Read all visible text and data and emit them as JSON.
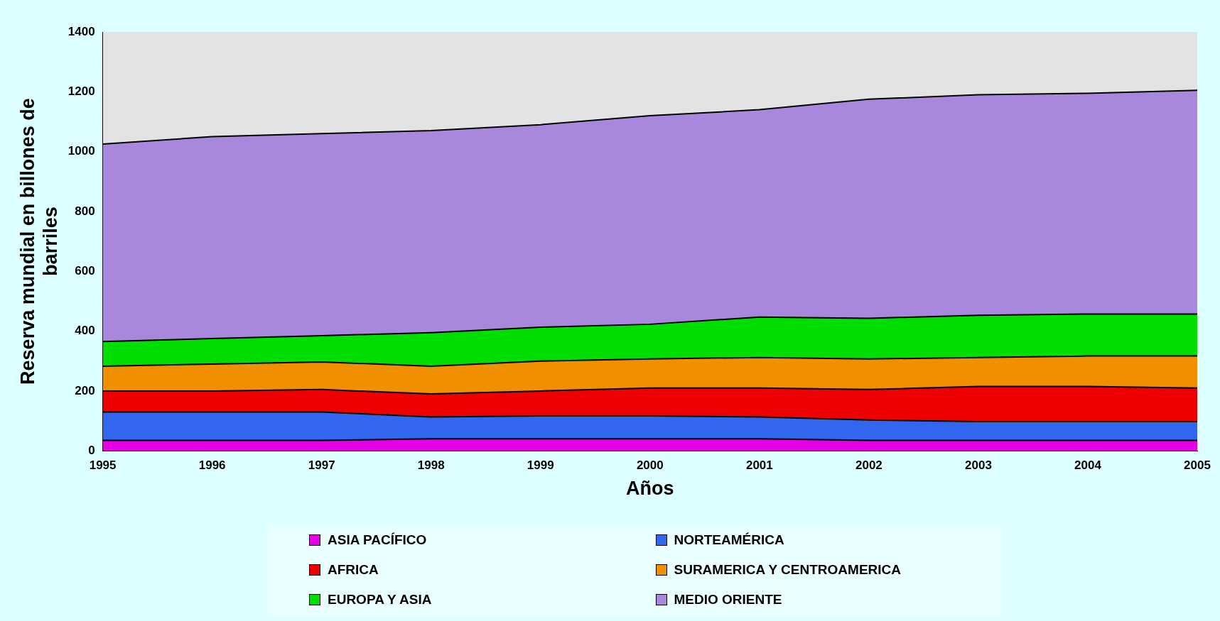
{
  "chart_data": {
    "type": "area",
    "stacked": true,
    "xlabel": "Años",
    "ylabel": "Reserva mundial en billones de barriles",
    "x": [
      1995,
      1996,
      1997,
      1998,
      1999,
      2000,
      2001,
      2002,
      2003,
      2004,
      2005
    ],
    "xlim": [
      1995,
      2005
    ],
    "xticks": [
      1995,
      1996,
      1997,
      1998,
      1999,
      2000,
      2001,
      2002,
      2003,
      2004,
      2005
    ],
    "ylim": [
      0,
      1400
    ],
    "yticks": [
      0,
      200,
      400,
      600,
      800,
      1000,
      1200,
      1400
    ],
    "legend": "bottom",
    "grid": false,
    "series": [
      {
        "name": "ASIA PACÍFICO",
        "color": "#e600e6",
        "values": [
          35,
          35,
          35,
          40,
          40,
          40,
          40,
          35,
          35,
          35,
          35
        ]
      },
      {
        "name": "NORTEAMÉRICA",
        "color": "#3366ee",
        "values": [
          95,
          95,
          95,
          73,
          77,
          77,
          73,
          68,
          63,
          63,
          63
        ]
      },
      {
        "name": "AFRICA",
        "color": "#ee0000",
        "values": [
          70,
          70,
          75,
          77,
          83,
          93,
          97,
          102,
          117,
          117,
          112
        ]
      },
      {
        "name": "SURAMERICA Y CENTROAMERICA",
        "color": "#f09000",
        "values": [
          83,
          90,
          92,
          93,
          100,
          97,
          102,
          102,
          97,
          102,
          107
        ]
      },
      {
        "name": "EUROPA Y ASIA",
        "color": "#00dd00",
        "values": [
          82,
          85,
          88,
          112,
          113,
          116,
          135,
          136,
          141,
          140,
          140
        ]
      },
      {
        "name": "MEDIO ORIENTE",
        "color": "#a888dd",
        "values": [
          660,
          675,
          675,
          675,
          677,
          697,
          693,
          732,
          737,
          738,
          748
        ]
      }
    ]
  }
}
